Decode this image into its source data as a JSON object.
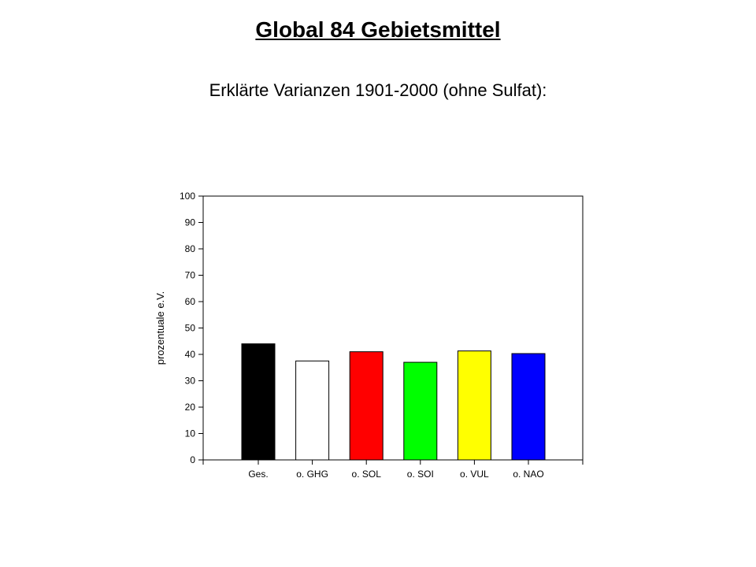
{
  "slide": {
    "title": "Global 84 Gebietsmittel",
    "subtitle": "Erklärte Varianzen 1901-2000 (ohne Sulfat):"
  },
  "colors": {
    "Ges.": "#000000",
    "o. GHG": "#ffffff",
    "o. SOL": "#ff0000",
    "o. SOI": "#00ff00",
    "o. VUL": "#ffff00",
    "o. NAO": "#0000ff"
  },
  "chart_data": {
    "type": "bar",
    "title": "",
    "xlabel": "",
    "ylabel": "prozentuale e.V.",
    "categories": [
      "Ges.",
      "o. GHG",
      "o. SOL",
      "o. SOI",
      "o. VUL",
      "o. NAO"
    ],
    "values": [
      44,
      37.5,
      41,
      37,
      41.3,
      40.3
    ],
    "ylim": [
      0,
      100
    ],
    "yticks": [
      0,
      10,
      20,
      30,
      40,
      50,
      60,
      70,
      80,
      90,
      100
    ],
    "grid": false,
    "legend": "none"
  }
}
